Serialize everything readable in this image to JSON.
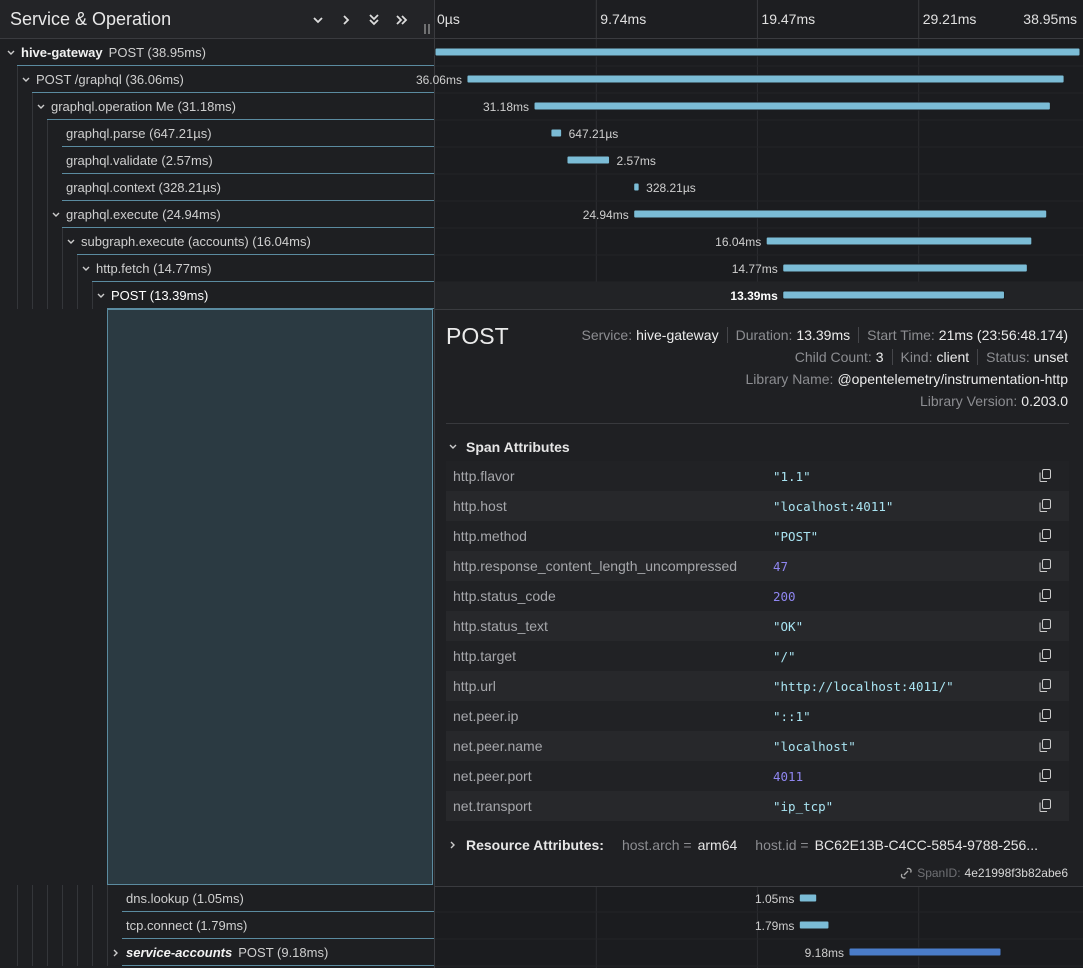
{
  "header": {
    "title": "Service & Operation",
    "ticks": [
      {
        "value": 0,
        "label": "0µs"
      },
      {
        "value": 9.74,
        "label": "9.74ms"
      },
      {
        "value": 19.47,
        "label": "19.47ms"
      },
      {
        "value": 29.21,
        "label": "29.21ms"
      },
      {
        "value": 38.95,
        "label": "38.95ms"
      }
    ]
  },
  "timeline": {
    "range_ms": [
      0,
      38.95
    ],
    "bar_color": "#7bbcd6"
  },
  "spans": [
    {
      "service": "hive-gateway",
      "label": "POST (38.95ms)",
      "depth": 0,
      "caret": "down",
      "start_ms": 0,
      "duration_ms": 38.95
    },
    {
      "label": "POST /graphql (36.06ms)",
      "duration_label": "36.06ms",
      "depth": 1,
      "caret": "down",
      "start_ms": 1.93,
      "duration_ms": 36.06
    },
    {
      "label": "graphql.operation Me (31.18ms)",
      "duration_label": "31.18ms",
      "depth": 2,
      "caret": "down",
      "start_ms": 5.98,
      "duration_ms": 31.18
    },
    {
      "label": "graphql.parse (647.21µs)",
      "duration_label": "647.21µs",
      "label_position": "right",
      "depth": 3,
      "start_ms": 7.0,
      "duration_ms": 0.647
    },
    {
      "label": "graphql.validate (2.57ms)",
      "duration_label": "2.57ms",
      "label_position": "right",
      "depth": 3,
      "start_ms": 7.97,
      "duration_ms": 2.57
    },
    {
      "label": "graphql.context (328.21µs)",
      "duration_label": "328.21µs",
      "label_position": "right",
      "depth": 3,
      "start_ms": 12.0,
      "duration_ms": 0.328
    },
    {
      "label": "graphql.execute (24.94ms)",
      "duration_label": "24.94ms",
      "depth": 3,
      "caret": "down",
      "start_ms": 12.0,
      "duration_ms": 24.94
    },
    {
      "label": "subgraph.execute (accounts) (16.04ms)",
      "duration_label": "16.04ms",
      "depth": 4,
      "caret": "down",
      "start_ms": 20.0,
      "duration_ms": 16.04
    },
    {
      "label": "http.fetch (14.77ms)",
      "duration_label": "14.77ms",
      "depth": 5,
      "caret": "down",
      "start_ms": 21.0,
      "duration_ms": 14.77
    },
    {
      "label": "POST (13.39ms)",
      "duration_label": "13.39ms",
      "depth": 6,
      "caret": "down",
      "selected": true,
      "start_ms": 21.0,
      "duration_ms": 13.39
    },
    {
      "label": "dns.lookup (1.05ms)",
      "duration_label": "1.05ms",
      "depth": 7,
      "start_ms": 22.0,
      "duration_ms": 1.05
    },
    {
      "label": "tcp.connect (1.79ms)",
      "duration_label": "1.79ms",
      "depth": 7,
      "start_ms": 22.0,
      "duration_ms": 1.79
    },
    {
      "service": "service-accounts",
      "label": "POST (9.18ms)",
      "duration_label": "9.18ms",
      "depth": 7,
      "caret": "right",
      "color": "#4a7cc9",
      "start_ms": 25.0,
      "duration_ms": 9.18
    }
  ],
  "detail": {
    "title": "POST",
    "meta": [
      [
        {
          "key": "Service:",
          "value": "hive-gateway"
        },
        {
          "key": "Duration:",
          "value": "13.39ms"
        },
        {
          "key": "Start Time:",
          "value": "21ms (23:56:48.174)"
        }
      ],
      [
        {
          "key": "Child Count:",
          "value": "3"
        },
        {
          "key": "Kind:",
          "value": "client"
        },
        {
          "key": "Status:",
          "value": "unset"
        }
      ],
      [
        {
          "key": "Library Name:",
          "value": "@opentelemetry/instrumentation-http"
        }
      ],
      [
        {
          "key": "Library Version:",
          "value": "0.203.0"
        }
      ]
    ],
    "attributes": {
      "title": "Span Attributes",
      "rows": [
        {
          "key": "http.flavor",
          "value": "\"1.1\""
        },
        {
          "key": "http.host",
          "value": "\"localhost:4011\""
        },
        {
          "key": "http.method",
          "value": "\"POST\""
        },
        {
          "key": "http.response_content_length_uncompressed",
          "value": 47
        },
        {
          "key": "http.status_code",
          "value": 200
        },
        {
          "key": "http.status_text",
          "value": "\"OK\""
        },
        {
          "key": "http.target",
          "value": "\"/\""
        },
        {
          "key": "http.url",
          "value": "\"http://localhost:4011/\""
        },
        {
          "key": "net.peer.ip",
          "value": "\"::1\""
        },
        {
          "key": "net.peer.name",
          "value": "\"localhost\""
        },
        {
          "key": "net.peer.port",
          "value": 4011
        },
        {
          "key": "net.transport",
          "value": "\"ip_tcp\""
        }
      ]
    },
    "resources": {
      "title": "Resource Attributes:",
      "items": [
        {
          "key": "host.arch =",
          "value": "arm64"
        },
        {
          "key": "host.id =",
          "value": "BC62E13B-C4CC-5854-9788-256..."
        }
      ]
    },
    "span_id": {
      "key": "SpanID:",
      "value": "4e21998f3b82abe6"
    }
  }
}
